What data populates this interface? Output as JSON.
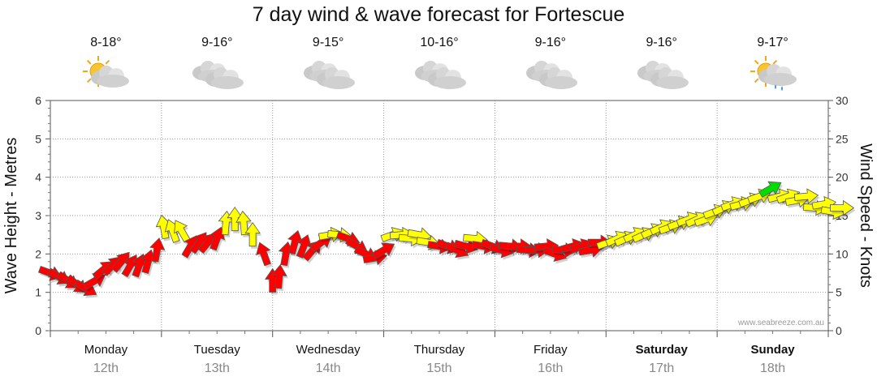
{
  "title": "7 day wind & wave forecast for Fortescue",
  "credit": "www.seabreeze.com.au",
  "days": [
    {
      "name": "Monday",
      "date": "12th",
      "temp": "8-18°",
      "icon": "partly-sunny-icon",
      "bold": false
    },
    {
      "name": "Tuesday",
      "date": "13th",
      "temp": "9-16°",
      "icon": "cloudy-icon",
      "bold": false
    },
    {
      "name": "Wednesday",
      "date": "14th",
      "temp": "9-15°",
      "icon": "cloudy-icon",
      "bold": false
    },
    {
      "name": "Thursday",
      "date": "15th",
      "temp": "10-16°",
      "icon": "cloudy-icon",
      "bold": false
    },
    {
      "name": "Friday",
      "date": "16th",
      "temp": "9-16°",
      "icon": "cloudy-icon",
      "bold": false
    },
    {
      "name": "Saturday",
      "date": "17th",
      "temp": "9-16°",
      "icon": "cloudy-icon",
      "bold": true
    },
    {
      "name": "Sunday",
      "date": "18th",
      "temp": "9-17°",
      "icon": "sun-shower-icon",
      "bold": true
    }
  ],
  "chart_data": {
    "type": "line",
    "title": "7 day wind & wave forecast for Fortescue",
    "ylabel_left": "Wave Height - Metres",
    "ylabel_right": "Wind Speed - Knots",
    "ylim_left": [
      0,
      6
    ],
    "ylim_right": [
      0,
      30
    ],
    "yticks_left": [
      0,
      1,
      2,
      3,
      4,
      5,
      6
    ],
    "yticks_right": [
      0,
      5,
      10,
      15,
      20,
      25,
      30
    ],
    "x_categories": [
      "Monday",
      "Tuesday",
      "Wednesday",
      "Thursday",
      "Friday",
      "Saturday",
      "Sunday"
    ],
    "grid": true,
    "colors": {
      "low": "#ff0000",
      "mid": "#ffff00",
      "high": "#00dd00",
      "outline": "#555555"
    },
    "series": [
      {
        "name": "Wind Speed - Knots",
        "note_x_unit": "day",
        "points": [
          {
            "day": 0.0,
            "knots": 7.5,
            "dir": 110,
            "band": "low"
          },
          {
            "day": 0.08,
            "knots": 7.0,
            "dir": 120,
            "band": "low"
          },
          {
            "day": 0.16,
            "knots": 6.5,
            "dir": 125,
            "band": "low"
          },
          {
            "day": 0.24,
            "knots": 6.0,
            "dir": 130,
            "band": "low"
          },
          {
            "day": 0.32,
            "knots": 5.5,
            "dir": 120,
            "band": "low"
          },
          {
            "day": 0.4,
            "knots": 6.5,
            "dir": 60,
            "band": "low"
          },
          {
            "day": 0.48,
            "knots": 8.0,
            "dir": 50,
            "band": "low"
          },
          {
            "day": 0.56,
            "knots": 8.5,
            "dir": 45,
            "band": "low"
          },
          {
            "day": 0.64,
            "knots": 9.0,
            "dir": 40,
            "band": "low"
          },
          {
            "day": 0.72,
            "knots": 8.5,
            "dir": 30,
            "band": "low"
          },
          {
            "day": 0.8,
            "knots": 8.5,
            "dir": 20,
            "band": "low"
          },
          {
            "day": 0.88,
            "knots": 9.0,
            "dir": 15,
            "band": "low"
          },
          {
            "day": 0.96,
            "knots": 10.5,
            "dir": 10,
            "band": "low"
          },
          {
            "day": 1.02,
            "knots": 13.5,
            "dir": 350,
            "band": "mid"
          },
          {
            "day": 1.1,
            "knots": 13.0,
            "dir": 340,
            "band": "mid"
          },
          {
            "day": 1.18,
            "knots": 13.0,
            "dir": 330,
            "band": "mid"
          },
          {
            "day": 1.26,
            "knots": 11.0,
            "dir": 30,
            "band": "low"
          },
          {
            "day": 1.34,
            "knots": 11.5,
            "dir": 35,
            "band": "low"
          },
          {
            "day": 1.42,
            "knots": 11.5,
            "dir": 40,
            "band": "low"
          },
          {
            "day": 1.5,
            "knots": 12.0,
            "dir": 20,
            "band": "low"
          },
          {
            "day": 1.58,
            "knots": 14.0,
            "dir": 5,
            "band": "mid"
          },
          {
            "day": 1.66,
            "knots": 14.5,
            "dir": 0,
            "band": "mid"
          },
          {
            "day": 1.74,
            "knots": 14.0,
            "dir": 355,
            "band": "mid"
          },
          {
            "day": 1.82,
            "knots": 12.5,
            "dir": 0,
            "band": "mid"
          },
          {
            "day": 1.92,
            "knots": 10.0,
            "dir": 340,
            "band": "low"
          },
          {
            "day": 2.0,
            "knots": 6.5,
            "dir": 0,
            "band": "low"
          },
          {
            "day": 2.06,
            "knots": 7.0,
            "dir": 5,
            "band": "low"
          },
          {
            "day": 2.12,
            "knots": 10.0,
            "dir": 10,
            "band": "low"
          },
          {
            "day": 2.2,
            "knots": 11.5,
            "dir": 15,
            "band": "low"
          },
          {
            "day": 2.28,
            "knots": 11.0,
            "dir": 20,
            "band": "low"
          },
          {
            "day": 2.36,
            "knots": 10.5,
            "dir": 40,
            "band": "low"
          },
          {
            "day": 2.44,
            "knots": 11.5,
            "dir": 55,
            "band": "low"
          },
          {
            "day": 2.52,
            "knots": 12.5,
            "dir": 80,
            "band": "mid"
          },
          {
            "day": 2.6,
            "knots": 12.5,
            "dir": 95,
            "band": "mid"
          },
          {
            "day": 2.68,
            "knots": 12.0,
            "dir": 110,
            "band": "low"
          },
          {
            "day": 2.76,
            "knots": 11.0,
            "dir": 120,
            "band": "low"
          },
          {
            "day": 2.84,
            "knots": 10.0,
            "dir": 115,
            "band": "low"
          },
          {
            "day": 2.92,
            "knots": 9.5,
            "dir": 80,
            "band": "low"
          },
          {
            "day": 3.0,
            "knots": 10.5,
            "dir": 60,
            "band": "low"
          },
          {
            "day": 3.08,
            "knots": 12.5,
            "dir": 70,
            "band": "mid"
          },
          {
            "day": 3.16,
            "knots": 12.5,
            "dir": 85,
            "band": "mid"
          },
          {
            "day": 3.24,
            "knots": 12.0,
            "dir": 95,
            "band": "mid"
          },
          {
            "day": 3.32,
            "knots": 12.5,
            "dir": 100,
            "band": "mid"
          },
          {
            "day": 3.4,
            "knots": 11.5,
            "dir": 100,
            "band": "mid"
          },
          {
            "day": 3.5,
            "knots": 11.0,
            "dir": 100,
            "band": "low"
          },
          {
            "day": 3.58,
            "knots": 11.0,
            "dir": 110,
            "band": "low"
          },
          {
            "day": 3.66,
            "knots": 10.5,
            "dir": 115,
            "band": "low"
          },
          {
            "day": 3.74,
            "knots": 11.0,
            "dir": 105,
            "band": "low"
          },
          {
            "day": 3.82,
            "knots": 12.0,
            "dir": 95,
            "band": "mid"
          },
          {
            "day": 3.9,
            "knots": 11.0,
            "dir": 100,
            "band": "low"
          },
          {
            "day": 3.98,
            "knots": 11.0,
            "dir": 110,
            "band": "low"
          },
          {
            "day": 4.06,
            "knots": 10.5,
            "dir": 105,
            "band": "low"
          },
          {
            "day": 4.14,
            "knots": 11.0,
            "dir": 95,
            "band": "low"
          },
          {
            "day": 4.22,
            "knots": 11.0,
            "dir": 90,
            "band": "low"
          },
          {
            "day": 4.3,
            "knots": 10.5,
            "dir": 95,
            "band": "low"
          },
          {
            "day": 4.38,
            "knots": 10.5,
            "dir": 90,
            "band": "low"
          },
          {
            "day": 4.46,
            "knots": 11.0,
            "dir": 85,
            "band": "low"
          },
          {
            "day": 4.54,
            "knots": 10.0,
            "dir": 110,
            "band": "low"
          },
          {
            "day": 4.62,
            "knots": 10.5,
            "dir": 95,
            "band": "low"
          },
          {
            "day": 4.7,
            "knots": 11.0,
            "dir": 75,
            "band": "low"
          },
          {
            "day": 4.78,
            "knots": 11.0,
            "dir": 70,
            "band": "low"
          },
          {
            "day": 4.86,
            "knots": 10.5,
            "dir": 80,
            "band": "low"
          },
          {
            "day": 4.94,
            "knots": 11.5,
            "dir": 90,
            "band": "low"
          },
          {
            "day": 5.02,
            "knots": 11.5,
            "dir": 70,
            "band": "mid"
          },
          {
            "day": 5.1,
            "knots": 12.0,
            "dir": 65,
            "band": "mid"
          },
          {
            "day": 5.18,
            "knots": 12.0,
            "dir": 65,
            "band": "mid"
          },
          {
            "day": 5.26,
            "knots": 12.5,
            "dir": 65,
            "band": "mid"
          },
          {
            "day": 5.34,
            "knots": 12.5,
            "dir": 65,
            "band": "mid"
          },
          {
            "day": 5.42,
            "knots": 13.0,
            "dir": 65,
            "band": "mid"
          },
          {
            "day": 5.5,
            "knots": 13.5,
            "dir": 65,
            "band": "mid"
          },
          {
            "day": 5.58,
            "knots": 13.5,
            "dir": 70,
            "band": "mid"
          },
          {
            "day": 5.66,
            "knots": 14.0,
            "dir": 70,
            "band": "mid"
          },
          {
            "day": 5.74,
            "knots": 14.5,
            "dir": 70,
            "band": "mid"
          },
          {
            "day": 5.82,
            "knots": 14.5,
            "dir": 65,
            "band": "mid"
          },
          {
            "day": 5.9,
            "knots": 14.5,
            "dir": 70,
            "band": "mid"
          },
          {
            "day": 5.98,
            "knots": 15.5,
            "dir": 70,
            "band": "mid"
          },
          {
            "day": 6.06,
            "knots": 16.0,
            "dir": 65,
            "band": "mid"
          },
          {
            "day": 6.14,
            "knots": 16.5,
            "dir": 70,
            "band": "mid"
          },
          {
            "day": 6.22,
            "knots": 16.5,
            "dir": 75,
            "band": "mid"
          },
          {
            "day": 6.3,
            "knots": 17.0,
            "dir": 70,
            "band": "mid"
          },
          {
            "day": 6.38,
            "knots": 17.5,
            "dir": 70,
            "band": "mid"
          },
          {
            "day": 6.48,
            "knots": 18.5,
            "dir": 60,
            "band": "high"
          },
          {
            "day": 6.56,
            "knots": 17.5,
            "dir": 75,
            "band": "mid"
          },
          {
            "day": 6.64,
            "knots": 17.5,
            "dir": 70,
            "band": "mid"
          },
          {
            "day": 6.72,
            "knots": 17.0,
            "dir": 80,
            "band": "mid"
          },
          {
            "day": 6.8,
            "knots": 17.5,
            "dir": 85,
            "band": "mid"
          },
          {
            "day": 6.88,
            "knots": 16.0,
            "dir": 95,
            "band": "mid"
          },
          {
            "day": 6.96,
            "knots": 16.5,
            "dir": 80,
            "band": "mid"
          },
          {
            "day": 7.04,
            "knots": 15.5,
            "dir": 100,
            "band": "mid"
          },
          {
            "day": 7.12,
            "knots": 16.0,
            "dir": 90,
            "band": "mid"
          }
        ]
      }
    ]
  }
}
